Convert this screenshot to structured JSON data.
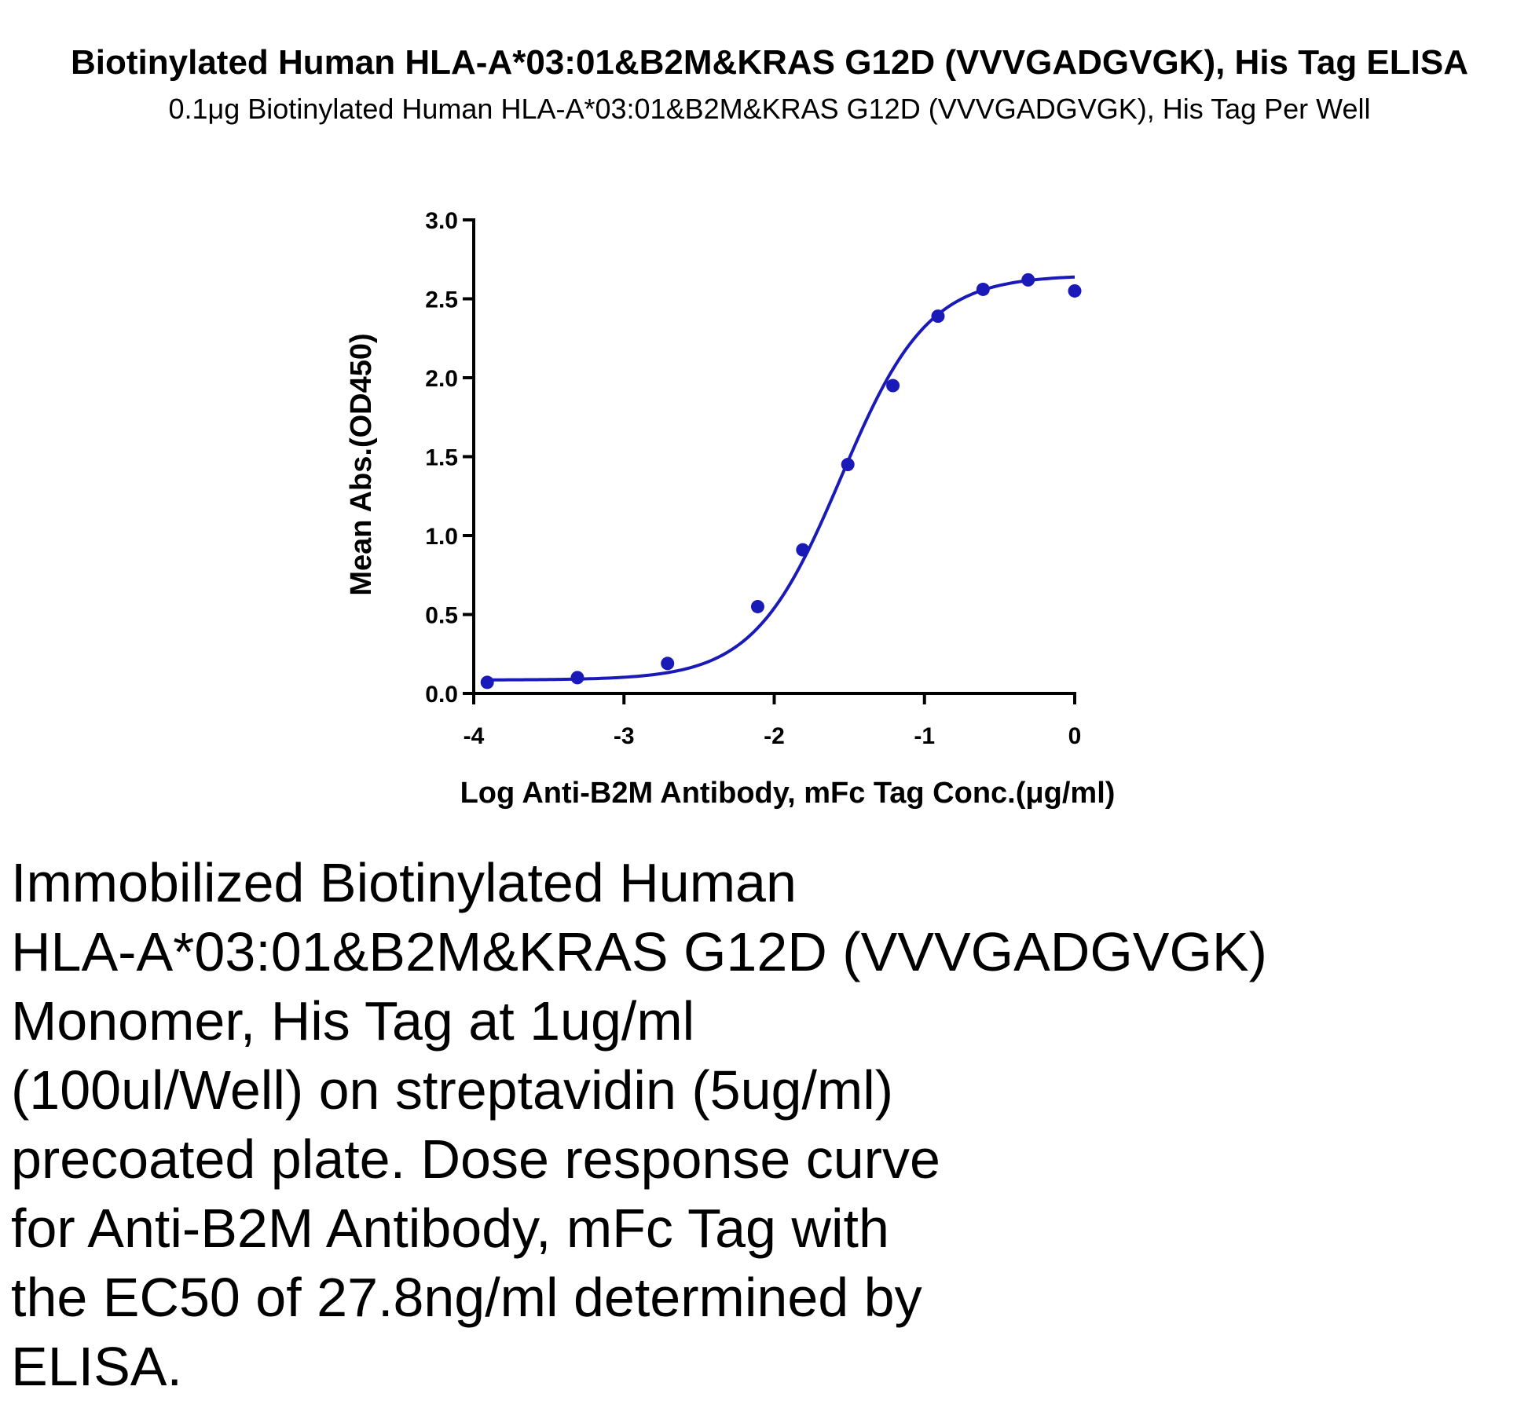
{
  "chart_data": {
    "type": "scatter",
    "title": "Biotinylated Human HLA-A*03:01&B2M&KRAS G12D (VVVGADGVGK), His Tag ELISA",
    "subtitle": "0.1μg Biotinylated Human HLA-A*03:01&B2M&KRAS G12D (VVVGADGVGK), His Tag Per Well",
    "xlabel": "Log Anti-B2M Antibody, mFc Tag Conc.(μg/ml)",
    "ylabel": "Mean Abs.(OD450)",
    "xlim": [
      -4,
      0
    ],
    "ylim": [
      0,
      3.0
    ],
    "x_ticks": [
      -4,
      -3,
      -2,
      -1,
      0
    ],
    "x_tick_labels": [
      "-4",
      "-3",
      "-2",
      "-1",
      "0"
    ],
    "y_ticks": [
      0,
      0.5,
      1.0,
      1.5,
      2.0,
      2.5,
      3.0
    ],
    "y_tick_labels": [
      "0.0",
      "0.5",
      "1.0",
      "1.5",
      "2.0",
      "2.5",
      "3.0"
    ],
    "grid": false,
    "color": "#1a1ab8",
    "series": [
      {
        "x": [
          -3.91,
          -3.31,
          -2.71,
          -2.11,
          -1.81,
          -1.51,
          -1.21,
          -0.91,
          -0.61,
          -0.31,
          0.0
        ],
        "y": [
          0.07,
          0.1,
          0.19,
          0.55,
          0.91,
          1.45,
          1.95,
          2.39,
          2.56,
          2.62,
          2.55
        ]
      }
    ],
    "fit": {
      "model": "4PL",
      "bottom": 0.085,
      "top": 2.65,
      "log_ec50": -1.556,
      "hill_slope": 1.5
    }
  },
  "caption": {
    "lines": [
      "Immobilized Biotinylated Human",
      "HLA-A*03:01&B2M&KRAS G12D (VVVGADGVGK)",
      "Monomer, His Tag at 1ug/ml",
      "(100ul/Well) on streptavidin (5ug/ml)",
      "precoated plate. Dose response curve",
      "for Anti-B2M Antibody, mFc Tag with",
      "the EC50 of 27.8ng/ml determined by",
      "ELISA."
    ]
  }
}
